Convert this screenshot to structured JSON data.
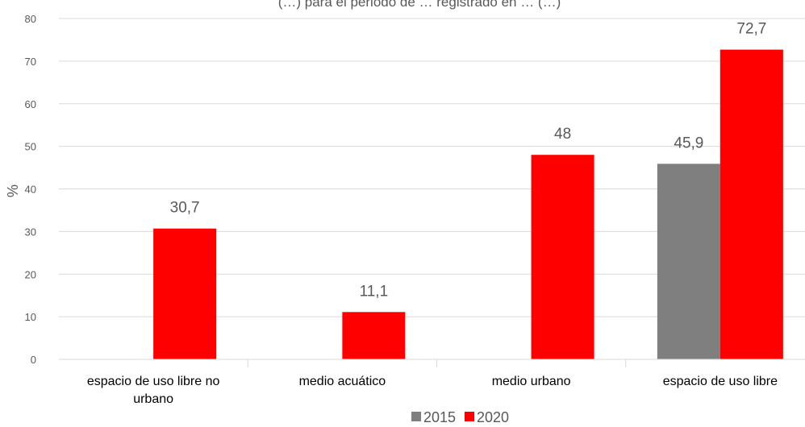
{
  "chart_data": {
    "type": "bar",
    "title": "(…) para el periodo de … registrado en … (…)",
    "ylabel": "%",
    "ylim": [
      0,
      80
    ],
    "yticks": [
      0,
      10,
      20,
      30,
      40,
      50,
      60,
      70,
      80
    ],
    "grid": true,
    "legend_position": "bottom",
    "categories": [
      [
        "espacio de uso libre no",
        "urbano"
      ],
      [
        "medio acuático"
      ],
      [
        "medio urbano"
      ],
      [
        "espacio de uso libre"
      ]
    ],
    "series": [
      {
        "name": "2015",
        "color": "#7f7f7f",
        "values": [
          null,
          null,
          null,
          45.9
        ],
        "labels": [
          "",
          "",
          "",
          "45,9"
        ]
      },
      {
        "name": "2020",
        "color": "#ff0000",
        "values": [
          30.7,
          11.1,
          48,
          72.7
        ],
        "labels": [
          "30,7",
          "11,1",
          "48",
          "72,7"
        ]
      }
    ]
  }
}
